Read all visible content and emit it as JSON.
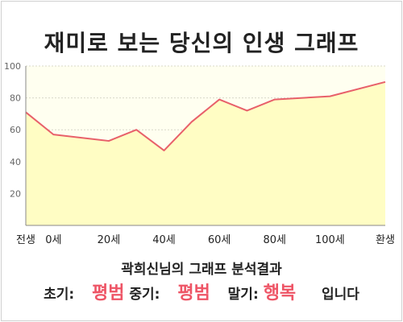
{
  "title": "재미로 보는 당신의 인생 그래프",
  "chart_data": {
    "type": "area",
    "x_categories": [
      "전생",
      "0세",
      "20세",
      "40세",
      "60세",
      "80세",
      "100세",
      "환생"
    ],
    "points": [
      {
        "x": "전생",
        "y": 71
      },
      {
        "x": "0세",
        "y": 57
      },
      {
        "x": "20세",
        "y": 53
      },
      {
        "x": 30,
        "y": 60
      },
      {
        "x": "40세",
        "y": 47
      },
      {
        "x": 50,
        "y": 65
      },
      {
        "x": "60세",
        "y": 79
      },
      {
        "x": 70,
        "y": 72
      },
      {
        "x": "80세",
        "y": 79
      },
      {
        "x": "100세",
        "y": 81
      },
      {
        "x": "환생",
        "y": 90
      }
    ],
    "y_ticks": [
      20,
      40,
      60,
      80,
      100
    ],
    "ylim": [
      0,
      100
    ],
    "grid": true,
    "line_color": "#e8606a",
    "fill_color": "#fffdc4",
    "plot_bg": "#fffff0"
  },
  "result": {
    "heading": "곽희신님의 그래프 분석결과",
    "early_label": "초기:",
    "early_value": "평범",
    "mid_label": "중기:",
    "mid_value": "평범",
    "late_label": "말기:",
    "late_value": "행복",
    "ending": "입니다"
  }
}
